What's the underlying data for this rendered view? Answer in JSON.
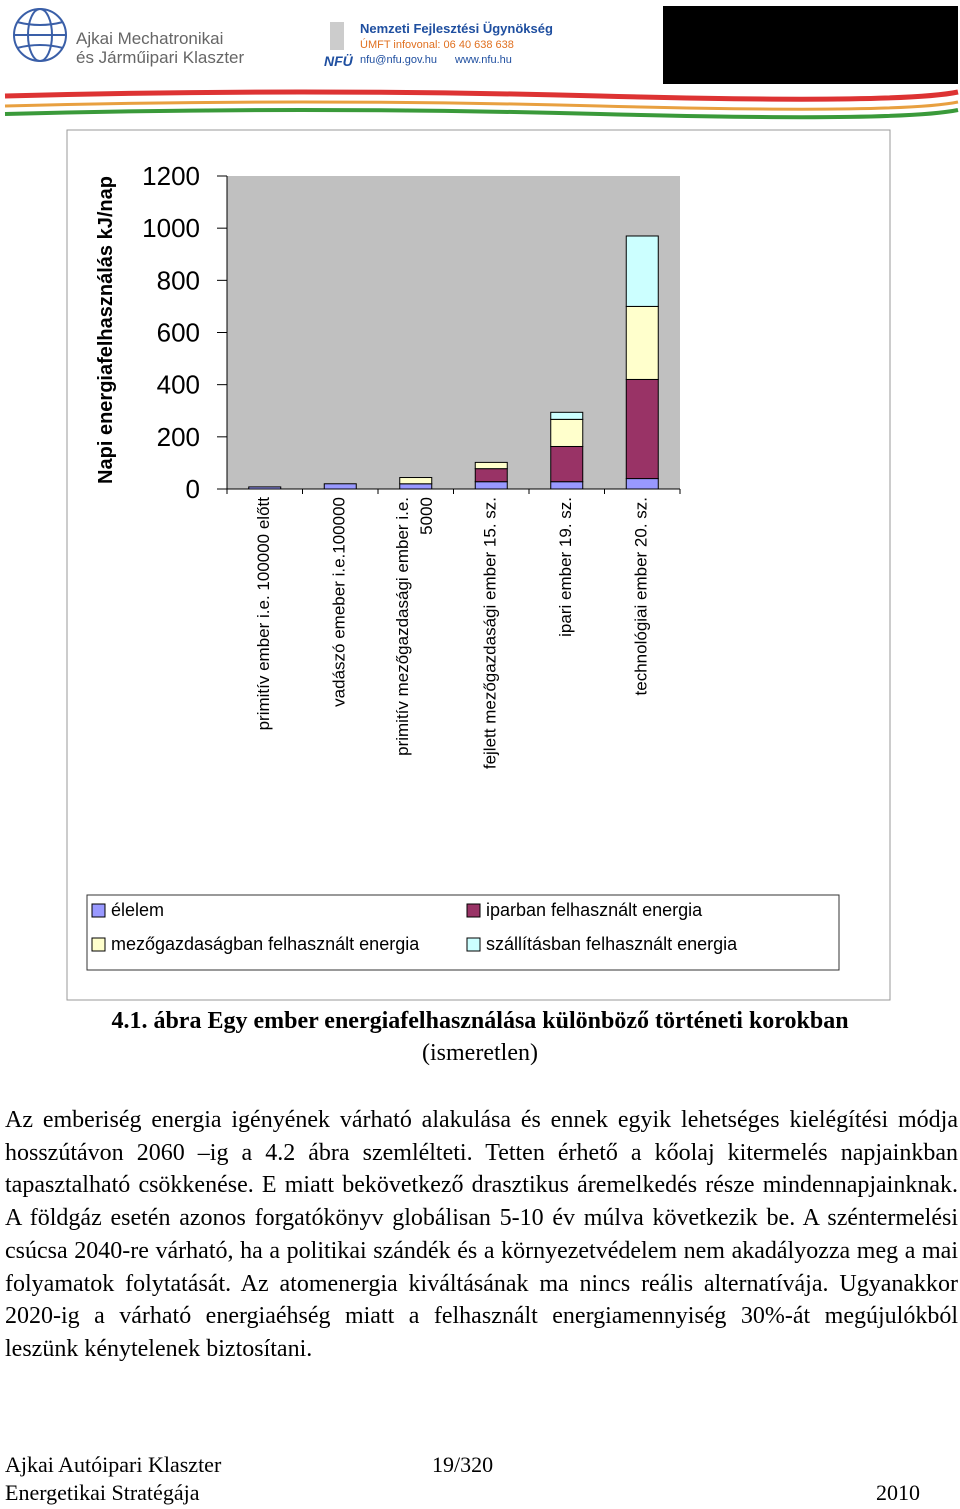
{
  "header": {
    "logo_left": [
      "Ajkai Mechatronikai",
      "és Járműipari Klaszter"
    ],
    "nfu_logo": "NFÜ",
    "nfu_lines": [
      "Nemzeti Fejlesztési Ügynökség",
      "ÚMFT infovonal: 06 40 638 638",
      "nfu@nfu.gov.hu",
      "www.nfu.hu"
    ]
  },
  "chart_data": {
    "type": "stacked_bar",
    "y_label": "Napi energiafelhasználás kJ/nap",
    "categories": [
      [
        "primitív ember i.e. 100000 előtt"
      ],
      [
        "vadászó emeber i.e.100000"
      ],
      [
        "primitív mezőgazdasági ember i.e.",
        "5000"
      ],
      [
        "fejlett mezőgazdasági ember 15. sz."
      ],
      [
        "ipari ember 19. sz."
      ],
      [
        "technológiai ember 20. sz."
      ]
    ],
    "series": [
      {
        "name": "élelem",
        "color": "#9999ff",
        "values": [
          8,
          20,
          20,
          28,
          28,
          40
        ]
      },
      {
        "name": "iparban felhasznált energia",
        "color": "#993366",
        "values": [
          0,
          0,
          0,
          50,
          135,
          380
        ]
      },
      {
        "name": "mezőgazdaságban felhasznált energia",
        "color": "#ffffcc",
        "values": [
          0,
          0,
          24,
          24,
          104,
          280
        ]
      },
      {
        "name": "szállításban felhasznált energia",
        "color": "#ccffff",
        "values": [
          0,
          0,
          0,
          0,
          27,
          270
        ]
      }
    ],
    "ylim": [
      0,
      1200
    ],
    "yticks": [
      0,
      200,
      400,
      600,
      800,
      1000,
      1200
    ],
    "grid": false,
    "plot_background": "#c0c0c0"
  },
  "caption": [
    "4.1. ábra Egy ember energiafelhasználása különböző történeti korokban",
    "(ismeretlen)"
  ],
  "paragraph": "Az emberiség energia igényének várható alakulása és ennek egyik lehetséges kielégítési módja hosszútávon 2060 –ig a 4.2 ábra szemlélteti. Tetten érhető a kőolaj kitermelés napjainkban tapasztalható csökkenése. E miatt bekövetkező drasztikus áremelkedés része mindennapjainknak. A földgáz esetén azonos forgatókönyv globálisan 5-10 év múlva következik be. A széntermelési csúcsa 2040-re várható, ha a politikai szándék és a környezetvédelem nem akadályozza meg a mai folyamatok folytatását. Az atomenergia kiváltásának ma nincs reális alternatívája. Ugyanakkor 2020-ig a várható energiaéhség miatt a felhasznált energiamennyiség 30%-át megújulókból leszünk kénytelenek biztosítani.",
  "footer": {
    "left": [
      "Ajkai Autóipari Klaszter",
      "Energetikai Stratégája"
    ],
    "page": "19/320",
    "year": "2010"
  }
}
